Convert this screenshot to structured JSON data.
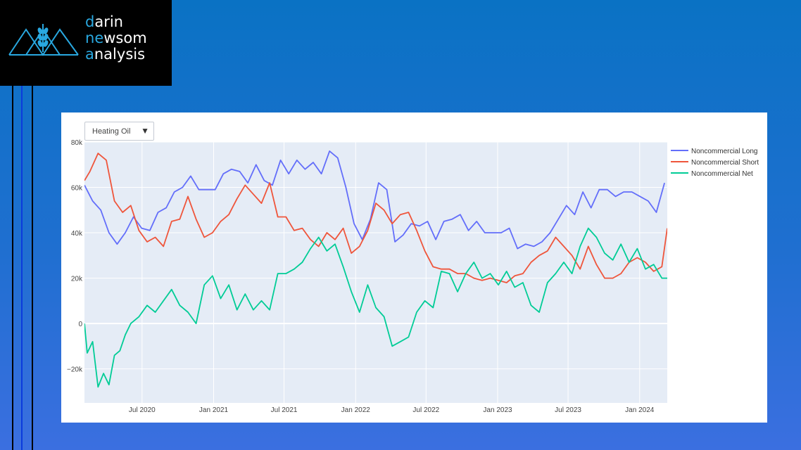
{
  "logo": {
    "line1_initial": "d",
    "line1_rest": "arin",
    "line2_initial": "n",
    "line2_mid": "e",
    "line2_w": "w",
    "line2_rest": "som",
    "line3_initial": "a",
    "line3_rest": "nalysis"
  },
  "colors": {
    "accent": "#29a8e0",
    "plot_bg": "#e5ecf6",
    "long": "#636efa",
    "short": "#ef553b",
    "net": "#00cc96"
  },
  "dropdown": {
    "selected": "Heating Oil",
    "icon": "triangle-down-icon"
  },
  "chart_data": {
    "type": "line",
    "title": "",
    "xlabel": "",
    "ylabel": "",
    "xlim": [
      "2020-02-04",
      "2024-03-12"
    ],
    "ylim": [
      -35000,
      80000
    ],
    "y_ticks": [
      -20000,
      0,
      20000,
      40000,
      60000,
      80000
    ],
    "y_tick_labels": [
      "−20k",
      "0",
      "20k",
      "40k",
      "60k",
      "80k"
    ],
    "x_ticks": [
      "2020-07-01",
      "2021-01-01",
      "2021-07-01",
      "2022-01-01",
      "2022-07-01",
      "2023-01-01",
      "2023-07-01",
      "2024-01-01"
    ],
    "x_tick_labels": [
      "Jul 2020",
      "Jan 2021",
      "Jul 2021",
      "Jan 2022",
      "Jul 2022",
      "Jan 2023",
      "Jul 2023",
      "Jan 2024"
    ],
    "grid": true,
    "legend_position": "top-right",
    "series": [
      {
        "name": "Noncommercial Long",
        "points": [
          [
            "2020-02-04",
            61000
          ],
          [
            "2020-02-25",
            54000
          ],
          [
            "2020-03-17",
            50000
          ],
          [
            "2020-04-07",
            40000
          ],
          [
            "2020-04-28",
            35000
          ],
          [
            "2020-05-19",
            40000
          ],
          [
            "2020-06-09",
            47000
          ],
          [
            "2020-06-30",
            42000
          ],
          [
            "2020-07-21",
            41000
          ],
          [
            "2020-08-11",
            49000
          ],
          [
            "2020-09-01",
            51000
          ],
          [
            "2020-09-22",
            58000
          ],
          [
            "2020-10-13",
            60000
          ],
          [
            "2020-11-03",
            65000
          ],
          [
            "2020-11-24",
            59000
          ],
          [
            "2020-12-15",
            59000
          ],
          [
            "2021-01-05",
            59000
          ],
          [
            "2021-01-26",
            66000
          ],
          [
            "2021-02-16",
            68000
          ],
          [
            "2021-03-09",
            67000
          ],
          [
            "2021-03-30",
            62000
          ],
          [
            "2021-04-20",
            70000
          ],
          [
            "2021-05-11",
            63000
          ],
          [
            "2021-06-01",
            61000
          ],
          [
            "2021-06-22",
            72000
          ],
          [
            "2021-07-13",
            66000
          ],
          [
            "2021-08-03",
            72000
          ],
          [
            "2021-08-24",
            68000
          ],
          [
            "2021-09-14",
            71000
          ],
          [
            "2021-10-05",
            66000
          ],
          [
            "2021-10-26",
            76000
          ],
          [
            "2021-11-16",
            73000
          ],
          [
            "2021-12-07",
            60000
          ],
          [
            "2021-12-28",
            44000
          ],
          [
            "2022-01-18",
            37000
          ],
          [
            "2022-02-08",
            46000
          ],
          [
            "2022-03-01",
            62000
          ],
          [
            "2022-03-22",
            59000
          ],
          [
            "2022-04-12",
            36000
          ],
          [
            "2022-05-03",
            39000
          ],
          [
            "2022-05-24",
            44000
          ],
          [
            "2022-06-14",
            43000
          ],
          [
            "2022-07-05",
            45000
          ],
          [
            "2022-07-26",
            37000
          ],
          [
            "2022-08-16",
            45000
          ],
          [
            "2022-09-06",
            46000
          ],
          [
            "2022-09-27",
            48000
          ],
          [
            "2022-10-18",
            41000
          ],
          [
            "2022-11-08",
            45000
          ],
          [
            "2022-11-29",
            40000
          ],
          [
            "2022-12-20",
            40000
          ],
          [
            "2023-01-10",
            40000
          ],
          [
            "2023-01-31",
            42000
          ],
          [
            "2023-02-21",
            33000
          ],
          [
            "2023-03-14",
            35000
          ],
          [
            "2023-04-04",
            34000
          ],
          [
            "2023-04-25",
            36000
          ],
          [
            "2023-05-16",
            40000
          ],
          [
            "2023-06-06",
            46000
          ],
          [
            "2023-06-27",
            52000
          ],
          [
            "2023-07-18",
            48000
          ],
          [
            "2023-08-08",
            58000
          ],
          [
            "2023-08-29",
            51000
          ],
          [
            "2023-09-19",
            59000
          ],
          [
            "2023-10-10",
            59000
          ],
          [
            "2023-10-31",
            56000
          ],
          [
            "2023-11-21",
            58000
          ],
          [
            "2023-12-12",
            58000
          ],
          [
            "2024-01-02",
            56000
          ],
          [
            "2024-01-23",
            54000
          ],
          [
            "2024-02-13",
            49000
          ],
          [
            "2024-03-05",
            62000
          ]
        ]
      },
      {
        "name": "Noncommercial Short",
        "points": [
          [
            "2020-02-04",
            63000
          ],
          [
            "2020-02-18",
            67000
          ],
          [
            "2020-03-10",
            75000
          ],
          [
            "2020-03-31",
            72000
          ],
          [
            "2020-04-21",
            54000
          ],
          [
            "2020-05-12",
            49000
          ],
          [
            "2020-06-02",
            52000
          ],
          [
            "2020-06-23",
            41000
          ],
          [
            "2020-07-14",
            36000
          ],
          [
            "2020-08-04",
            38000
          ],
          [
            "2020-08-25",
            34000
          ],
          [
            "2020-09-15",
            45000
          ],
          [
            "2020-10-06",
            46000
          ],
          [
            "2020-10-27",
            56000
          ],
          [
            "2020-11-17",
            46000
          ],
          [
            "2020-12-08",
            38000
          ],
          [
            "2020-12-29",
            40000
          ],
          [
            "2021-01-19",
            45000
          ],
          [
            "2021-02-09",
            48000
          ],
          [
            "2021-03-02",
            55000
          ],
          [
            "2021-03-23",
            61000
          ],
          [
            "2021-04-13",
            57000
          ],
          [
            "2021-05-04",
            53000
          ],
          [
            "2021-05-25",
            62000
          ],
          [
            "2021-06-15",
            47000
          ],
          [
            "2021-07-06",
            47000
          ],
          [
            "2021-07-27",
            41000
          ],
          [
            "2021-08-17",
            42000
          ],
          [
            "2021-09-07",
            37000
          ],
          [
            "2021-09-28",
            34000
          ],
          [
            "2021-10-19",
            40000
          ],
          [
            "2021-11-09",
            37000
          ],
          [
            "2021-11-30",
            42000
          ],
          [
            "2021-12-21",
            31000
          ],
          [
            "2022-01-11",
            34000
          ],
          [
            "2022-02-01",
            41000
          ],
          [
            "2022-02-22",
            53000
          ],
          [
            "2022-03-15",
            50000
          ],
          [
            "2022-04-05",
            44000
          ],
          [
            "2022-04-26",
            48000
          ],
          [
            "2022-05-17",
            49000
          ],
          [
            "2022-06-07",
            41000
          ],
          [
            "2022-06-28",
            32000
          ],
          [
            "2022-07-19",
            25000
          ],
          [
            "2022-08-09",
            24000
          ],
          [
            "2022-08-30",
            24000
          ],
          [
            "2022-09-20",
            22000
          ],
          [
            "2022-10-11",
            22000
          ],
          [
            "2022-11-01",
            20000
          ],
          [
            "2022-11-22",
            19000
          ],
          [
            "2022-12-13",
            20000
          ],
          [
            "2023-01-03",
            19000
          ],
          [
            "2023-01-24",
            18000
          ],
          [
            "2023-02-14",
            21000
          ],
          [
            "2023-03-07",
            22000
          ],
          [
            "2023-03-28",
            27000
          ],
          [
            "2023-04-18",
            30000
          ],
          [
            "2023-05-09",
            32000
          ],
          [
            "2023-05-30",
            38000
          ],
          [
            "2023-06-20",
            34000
          ],
          [
            "2023-07-11",
            30000
          ],
          [
            "2023-08-01",
            24000
          ],
          [
            "2023-08-22",
            34000
          ],
          [
            "2023-09-12",
            26000
          ],
          [
            "2023-10-03",
            20000
          ],
          [
            "2023-10-24",
            20000
          ],
          [
            "2023-11-14",
            22000
          ],
          [
            "2023-12-05",
            27000
          ],
          [
            "2023-12-26",
            29000
          ],
          [
            "2024-01-16",
            27000
          ],
          [
            "2024-02-06",
            23000
          ],
          [
            "2024-02-27",
            25000
          ],
          [
            "2024-03-12",
            42000
          ]
        ]
      },
      {
        "name": "Noncommercial Net",
        "points": [
          [
            "2020-02-04",
            0
          ],
          [
            "2020-02-11",
            -13000
          ],
          [
            "2020-02-25",
            -8000
          ],
          [
            "2020-03-10",
            -28000
          ],
          [
            "2020-03-24",
            -22000
          ],
          [
            "2020-04-07",
            -27000
          ],
          [
            "2020-04-21",
            -14000
          ],
          [
            "2020-05-05",
            -12000
          ],
          [
            "2020-05-19",
            -5000
          ],
          [
            "2020-06-02",
            0
          ],
          [
            "2020-06-23",
            3000
          ],
          [
            "2020-07-14",
            8000
          ],
          [
            "2020-08-04",
            5000
          ],
          [
            "2020-08-25",
            10000
          ],
          [
            "2020-09-15",
            15000
          ],
          [
            "2020-10-06",
            8000
          ],
          [
            "2020-10-27",
            5000
          ],
          [
            "2020-11-17",
            0
          ],
          [
            "2020-12-08",
            17000
          ],
          [
            "2020-12-29",
            21000
          ],
          [
            "2021-01-19",
            11000
          ],
          [
            "2021-02-09",
            17000
          ],
          [
            "2021-03-02",
            6000
          ],
          [
            "2021-03-23",
            13000
          ],
          [
            "2021-04-13",
            6000
          ],
          [
            "2021-05-04",
            10000
          ],
          [
            "2021-05-25",
            6000
          ],
          [
            "2021-06-15",
            22000
          ],
          [
            "2021-07-06",
            22000
          ],
          [
            "2021-07-27",
            24000
          ],
          [
            "2021-08-17",
            27000
          ],
          [
            "2021-09-07",
            33000
          ],
          [
            "2021-09-28",
            38000
          ],
          [
            "2021-10-19",
            32000
          ],
          [
            "2021-11-09",
            35000
          ],
          [
            "2021-11-30",
            25000
          ],
          [
            "2021-12-21",
            14000
          ],
          [
            "2022-01-11",
            5000
          ],
          [
            "2022-02-01",
            17000
          ],
          [
            "2022-02-22",
            7000
          ],
          [
            "2022-03-15",
            3000
          ],
          [
            "2022-04-05",
            -10000
          ],
          [
            "2022-04-26",
            -8000
          ],
          [
            "2022-05-17",
            -6000
          ],
          [
            "2022-06-07",
            5000
          ],
          [
            "2022-06-28",
            10000
          ],
          [
            "2022-07-19",
            7000
          ],
          [
            "2022-08-09",
            23000
          ],
          [
            "2022-08-30",
            22000
          ],
          [
            "2022-09-20",
            14000
          ],
          [
            "2022-10-11",
            22000
          ],
          [
            "2022-11-01",
            27000
          ],
          [
            "2022-11-22",
            20000
          ],
          [
            "2022-12-13",
            22000
          ],
          [
            "2023-01-03",
            17000
          ],
          [
            "2023-01-24",
            23000
          ],
          [
            "2023-02-14",
            16000
          ],
          [
            "2023-03-07",
            18000
          ],
          [
            "2023-03-28",
            8000
          ],
          [
            "2023-04-18",
            5000
          ],
          [
            "2023-05-09",
            18000
          ],
          [
            "2023-05-30",
            22000
          ],
          [
            "2023-06-20",
            27000
          ],
          [
            "2023-07-11",
            22000
          ],
          [
            "2023-08-01",
            34000
          ],
          [
            "2023-08-22",
            42000
          ],
          [
            "2023-09-12",
            38000
          ],
          [
            "2023-10-03",
            31000
          ],
          [
            "2023-10-24",
            28000
          ],
          [
            "2023-11-14",
            35000
          ],
          [
            "2023-12-05",
            27000
          ],
          [
            "2023-12-26",
            33000
          ],
          [
            "2024-01-16",
            24000
          ],
          [
            "2024-02-06",
            26000
          ],
          [
            "2024-02-27",
            20000
          ],
          [
            "2024-03-12",
            20000
          ]
        ]
      }
    ]
  }
}
